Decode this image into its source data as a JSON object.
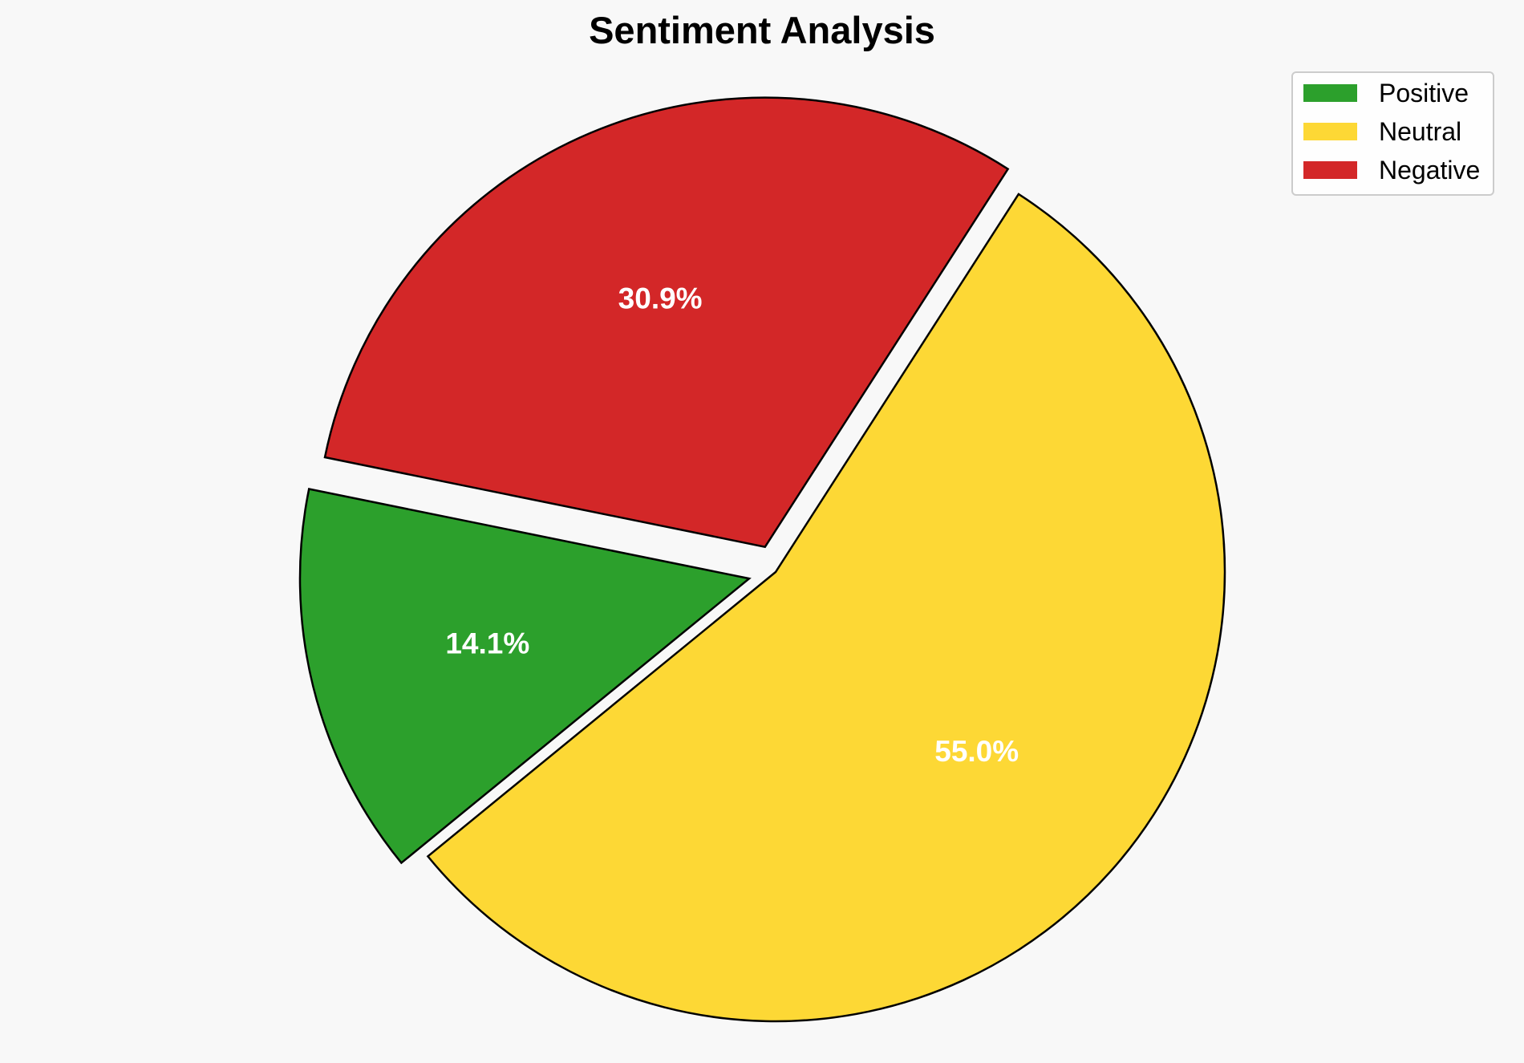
{
  "chart_data": {
    "type": "pie",
    "title": "Sentiment Analysis",
    "slices": [
      {
        "name": "Positive",
        "value": 14.1,
        "label": "14.1%",
        "color": "#2ca02c"
      },
      {
        "name": "Neutral",
        "value": 55.0,
        "label": "55.0%",
        "color": "#fdd835"
      },
      {
        "name": "Negative",
        "value": 30.9,
        "label": "30.9%",
        "color": "#d32728"
      }
    ],
    "exploded": [
      "Positive",
      "Negative"
    ],
    "legend": {
      "position": "top-right",
      "entries": [
        "Positive",
        "Neutral",
        "Negative"
      ]
    },
    "edge_color": "#000000"
  }
}
